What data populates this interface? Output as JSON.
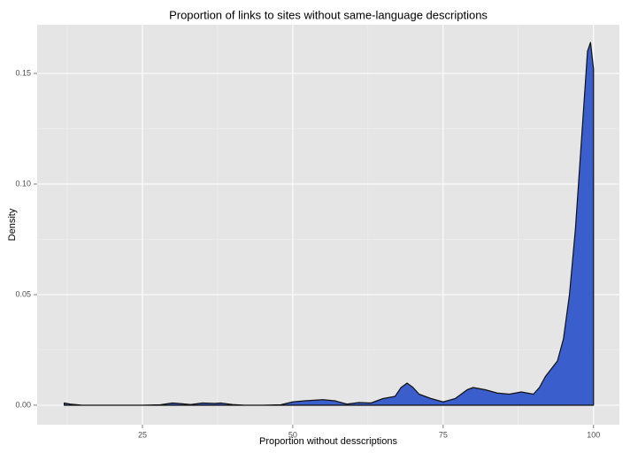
{
  "chart_data": {
    "type": "area",
    "title": "Proportion of links to sites without same-language descriptions",
    "x_label": "Proportion without desscriptions",
    "y_label": "Density",
    "x": [
      12,
      13,
      15,
      20,
      25,
      28,
      30,
      31,
      33,
      35,
      37,
      38,
      40,
      42,
      45,
      48,
      50,
      52,
      55,
      57,
      59,
      61,
      63,
      65,
      67,
      68,
      69,
      70,
      71,
      73,
      75,
      77,
      79,
      80,
      82,
      84,
      86,
      88,
      90,
      91,
      92,
      94,
      95,
      96,
      97,
      98,
      99,
      99.5,
      100
    ],
    "values": [
      0.001,
      0.0005,
      0,
      0,
      0,
      0.0002,
      0.001,
      0.0008,
      0.0003,
      0.001,
      0.0008,
      0.001,
      0.0003,
      0,
      0,
      0.0002,
      0.0015,
      0.002,
      0.0025,
      0.002,
      0.0005,
      0.0012,
      0.001,
      0.003,
      0.004,
      0.008,
      0.01,
      0.008,
      0.005,
      0.003,
      0.0015,
      0.003,
      0.007,
      0.008,
      0.007,
      0.0055,
      0.005,
      0.006,
      0.005,
      0.008,
      0.013,
      0.02,
      0.03,
      0.05,
      0.08,
      0.12,
      0.16,
      0.164,
      0.152
    ],
    "color": "#3a5fcd",
    "xlim": [
      7.5,
      104.3
    ],
    "ylim": [
      -0.0088,
      0.172
    ],
    "xticks": [
      25,
      50,
      75,
      100
    ],
    "yticks": [
      {
        "value": 0,
        "label": "0.00"
      },
      {
        "value": 0.05,
        "label": "0.05"
      },
      {
        "value": 0.1,
        "label": "0.10"
      },
      {
        "value": 0.15,
        "label": "0.15"
      }
    ],
    "x_minor_breaks": [
      12.5,
      37.5,
      62.5,
      87.5
    ],
    "y_minor_breaks": [
      0.025,
      0.075,
      0.125
    ],
    "grid": true
  }
}
